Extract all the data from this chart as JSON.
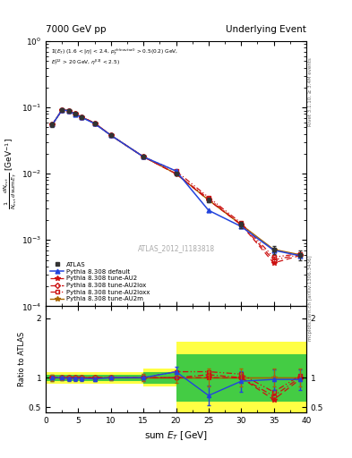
{
  "title_left": "7000 GeV pp",
  "title_right": "Underlying Event",
  "xlabel": "sum $E_T$ [GeV]",
  "ylabel_main": "$\\frac{1}{N_{evt}}\\frac{dN_{evt}}{d\\,\\mathrm{sum}\\,E_T}$ [GeV$^{-1}$]",
  "ylabel_ratio": "Ratio to ATLAS",
  "watermark": "ATLAS_2012_I1183818",
  "annotation": "$\\Sigma(E_T)$ (1.6 < |$\\eta$| < 2.4, $p_T^{ch(neutral)}$ > 0.5(0.2) GeV, $E_T^{l12}$ > 20 GeV, $\\eta^{|l2|}$ < 2.5)",
  "x_data": [
    1.0,
    2.5,
    3.5,
    4.5,
    5.5,
    7.5,
    10.0,
    15.0,
    20.0,
    25.0,
    30.0,
    35.0,
    39.0
  ],
  "atlas_y": [
    0.055,
    0.092,
    0.09,
    0.08,
    0.072,
    0.058,
    0.038,
    0.018,
    0.01,
    0.004,
    0.0017,
    0.00072,
    0.0006
  ],
  "atlas_yerr": [
    0.004,
    0.004,
    0.004,
    0.003,
    0.003,
    0.002,
    0.001,
    0.001,
    0.0005,
    0.0003,
    0.0002,
    0.0001,
    0.0001
  ],
  "default_y": [
    0.055,
    0.092,
    0.089,
    0.079,
    0.071,
    0.057,
    0.038,
    0.018,
    0.011,
    0.0028,
    0.0016,
    0.0007,
    0.00058
  ],
  "au2_y": [
    0.055,
    0.092,
    0.09,
    0.08,
    0.072,
    0.058,
    0.038,
    0.018,
    0.01,
    0.004,
    0.0017,
    0.00045,
    0.00058
  ],
  "au2lox_y": [
    0.055,
    0.092,
    0.09,
    0.08,
    0.072,
    0.058,
    0.038,
    0.018,
    0.01,
    0.0042,
    0.0017,
    0.0005,
    0.0006
  ],
  "au2loxx_y": [
    0.055,
    0.092,
    0.09,
    0.08,
    0.072,
    0.058,
    0.038,
    0.018,
    0.011,
    0.0044,
    0.0018,
    0.00055,
    0.00062
  ],
  "au2m_y": [
    0.055,
    0.092,
    0.09,
    0.08,
    0.072,
    0.058,
    0.038,
    0.018,
    0.01,
    0.004,
    0.0017,
    0.00072,
    0.0006
  ],
  "ratio_default": [
    1.0,
    1.0,
    0.99,
    0.99,
    0.99,
    0.98,
    1.0,
    1.0,
    1.1,
    0.7,
    0.94,
    0.97,
    0.97
  ],
  "ratio_au2": [
    1.0,
    1.0,
    1.0,
    1.0,
    1.0,
    1.0,
    1.0,
    1.0,
    1.0,
    1.0,
    1.0,
    0.63,
    0.97
  ],
  "ratio_au2lox": [
    1.0,
    1.0,
    1.0,
    1.0,
    1.0,
    1.0,
    1.0,
    1.0,
    1.0,
    1.05,
    1.0,
    0.69,
    1.0
  ],
  "ratio_au2loxx": [
    1.0,
    1.0,
    1.0,
    1.0,
    1.0,
    1.0,
    1.0,
    1.0,
    1.1,
    1.1,
    1.06,
    0.76,
    1.03
  ],
  "ratio_au2m": [
    1.0,
    1.0,
    1.0,
    1.0,
    1.0,
    1.0,
    1.0,
    1.0,
    1.0,
    1.0,
    1.0,
    1.0,
    1.0
  ],
  "ratio_default_err": [
    0.05,
    0.04,
    0.04,
    0.04,
    0.04,
    0.04,
    0.04,
    0.06,
    0.09,
    0.17,
    0.17,
    0.17,
    0.17
  ],
  "ratio_au2m_err": [
    0.05,
    0.04,
    0.04,
    0.04,
    0.04,
    0.04,
    0.04,
    0.06,
    0.08,
    0.15,
    0.15,
    0.15,
    0.15
  ],
  "color_atlas": "#333333",
  "color_default": "#2244dd",
  "color_au2": "#cc1111",
  "color_au2lox": "#cc1111",
  "color_au2loxx": "#cc1111",
  "color_au2m": "#aa6600",
  "band_yellow": "#ffff44",
  "band_green": "#44cc44",
  "xlim": [
    0,
    40
  ],
  "ylim_main": [
    0.0001,
    1.0
  ],
  "ylim_ratio": [
    0.42,
    2.2
  ],
  "ratio_yticks": [
    0.5,
    1.0,
    2.0
  ],
  "band_x_edges": [
    0,
    1,
    2,
    3,
    4,
    5,
    7,
    10,
    15,
    20,
    25,
    30,
    35,
    40
  ],
  "band_yellow_vals": [
    0.1,
    0.1,
    0.1,
    0.1,
    0.1,
    0.1,
    0.1,
    0.1,
    0.15,
    0.6,
    0.6,
    0.6,
    0.6
  ],
  "band_green_vals": [
    0.05,
    0.05,
    0.05,
    0.05,
    0.05,
    0.05,
    0.05,
    0.05,
    0.1,
    0.4,
    0.4,
    0.4,
    0.4
  ]
}
